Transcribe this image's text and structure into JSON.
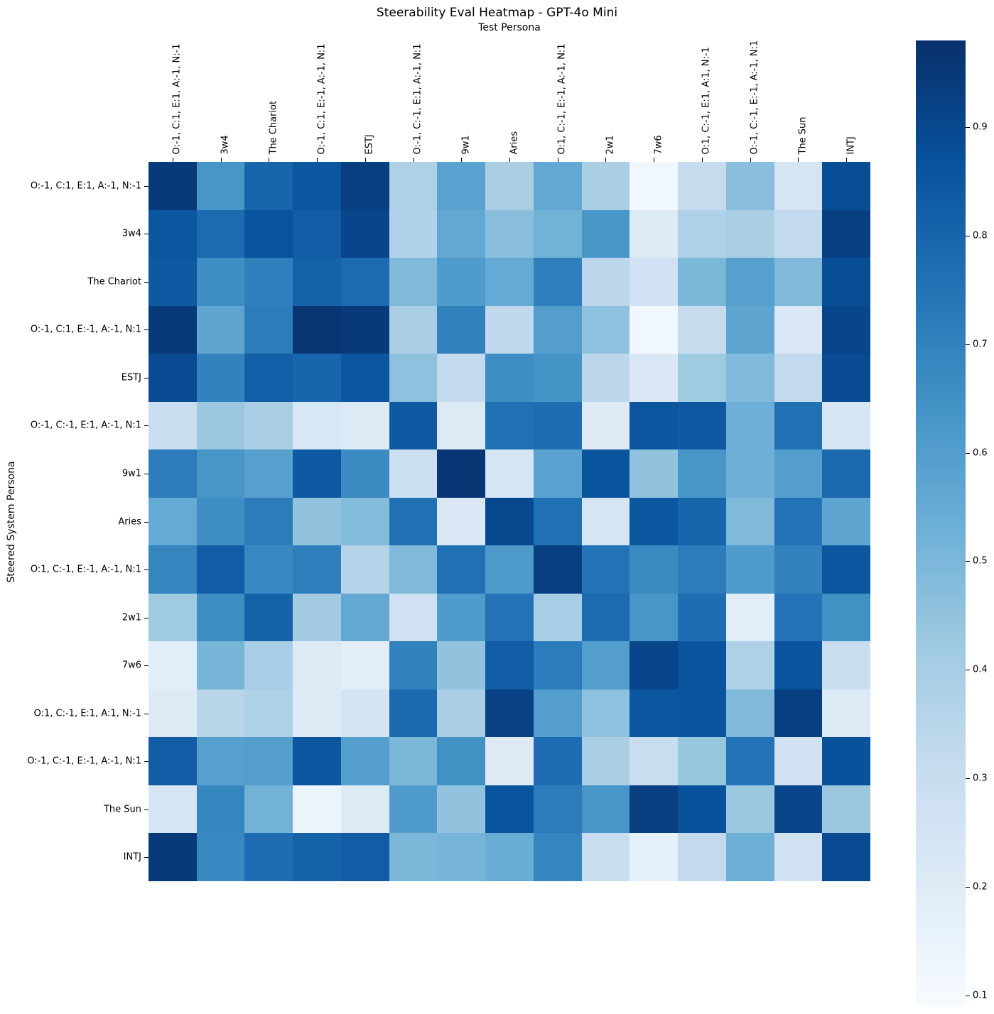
{
  "title": "Steerability Eval Heatmap - GPT-4o Mini",
  "x_axis_label": "Test Persona",
  "y_axis_label": "Steered System Persona",
  "chart_data": {
    "type": "heatmap",
    "title": "Steerability Eval Heatmap - GPT-4o Mini",
    "xlabel": "Test Persona",
    "ylabel": "Steered System Persona",
    "colormap": "Blues",
    "colormap_anchors": [
      {
        "pos": 0.0,
        "color": "#f7fbff"
      },
      {
        "pos": 0.125,
        "color": "#deebf7"
      },
      {
        "pos": 0.25,
        "color": "#c6dbef"
      },
      {
        "pos": 0.375,
        "color": "#9ecae1"
      },
      {
        "pos": 0.5,
        "color": "#6baed6"
      },
      {
        "pos": 0.625,
        "color": "#4292c6"
      },
      {
        "pos": 0.75,
        "color": "#2171b5"
      },
      {
        "pos": 0.875,
        "color": "#08519c"
      },
      {
        "pos": 1.0,
        "color": "#08306b"
      }
    ],
    "vmin": 0.09,
    "vmax": 0.98,
    "colorbar_ticks": [
      0.1,
      0.2,
      0.3,
      0.4,
      0.5,
      0.6,
      0.7,
      0.8,
      0.9
    ],
    "x_categories": [
      "O:-1, C:1, E:1, A:-1, N:-1",
      "3w4",
      "The Chariot",
      "O:-1, C:1, E:-1, A:-1, N:1",
      "ESTJ",
      "O:-1, C:-1, E:1, A:-1, N:1",
      "9w1",
      "Aries",
      "O:1, C:-1, E:-1, A:-1, N:1",
      "2w1",
      "7w6",
      "O:1, C:-1, E:1, A:1, N:-1",
      "O:-1, C:-1, E:-1, A:-1, N:1",
      "The Sun",
      "INTJ"
    ],
    "y_categories": [
      "O:-1, C:1, E:1, A:-1, N:-1",
      "3w4",
      "The Chariot",
      "O:-1, C:1, E:-1, A:-1, N:1",
      "ESTJ",
      "O:-1, C:-1, E:1, A:-1, N:1",
      "9w1",
      "Aries",
      "O:1, C:-1, E:-1, A:-1, N:1",
      "2w1",
      "7w6",
      "O:1, C:-1, E:1, A:1, N:-1",
      "O:-1, C:-1, E:-1, A:-1, N:1",
      "The Sun",
      "INTJ"
    ],
    "matrix": [
      [
        0.95,
        0.63,
        0.8,
        0.85,
        0.93,
        0.38,
        0.58,
        0.39,
        0.56,
        0.39,
        0.12,
        0.31,
        0.47,
        0.24,
        0.88
      ],
      [
        0.85,
        0.78,
        0.86,
        0.83,
        0.91,
        0.37,
        0.56,
        0.47,
        0.52,
        0.63,
        0.21,
        0.38,
        0.39,
        0.32,
        0.93
      ],
      [
        0.84,
        0.66,
        0.71,
        0.81,
        0.78,
        0.49,
        0.61,
        0.55,
        0.71,
        0.34,
        0.27,
        0.5,
        0.59,
        0.49,
        0.88
      ],
      [
        0.95,
        0.57,
        0.72,
        0.96,
        0.95,
        0.39,
        0.7,
        0.33,
        0.6,
        0.46,
        0.12,
        0.31,
        0.57,
        0.22,
        0.91
      ],
      [
        0.89,
        0.7,
        0.82,
        0.8,
        0.85,
        0.46,
        0.32,
        0.66,
        0.64,
        0.34,
        0.22,
        0.42,
        0.49,
        0.32,
        0.89
      ],
      [
        0.3,
        0.43,
        0.39,
        0.23,
        0.21,
        0.84,
        0.21,
        0.76,
        0.77,
        0.2,
        0.85,
        0.84,
        0.53,
        0.76,
        0.24
      ],
      [
        0.72,
        0.63,
        0.59,
        0.84,
        0.67,
        0.28,
        0.96,
        0.24,
        0.58,
        0.86,
        0.45,
        0.63,
        0.53,
        0.6,
        0.79
      ],
      [
        0.55,
        0.66,
        0.72,
        0.45,
        0.48,
        0.76,
        0.22,
        0.9,
        0.76,
        0.24,
        0.85,
        0.8,
        0.49,
        0.75,
        0.57
      ],
      [
        0.69,
        0.83,
        0.68,
        0.71,
        0.36,
        0.49,
        0.76,
        0.62,
        0.93,
        0.75,
        0.67,
        0.72,
        0.61,
        0.7,
        0.85
      ],
      [
        0.42,
        0.66,
        0.81,
        0.41,
        0.56,
        0.27,
        0.61,
        0.75,
        0.4,
        0.78,
        0.63,
        0.77,
        0.19,
        0.75,
        0.65
      ],
      [
        0.19,
        0.51,
        0.4,
        0.21,
        0.18,
        0.7,
        0.45,
        0.83,
        0.72,
        0.6,
        0.91,
        0.86,
        0.38,
        0.86,
        0.3
      ],
      [
        0.21,
        0.35,
        0.38,
        0.2,
        0.25,
        0.79,
        0.39,
        0.92,
        0.6,
        0.46,
        0.85,
        0.86,
        0.49,
        0.93,
        0.21
      ],
      [
        0.83,
        0.59,
        0.6,
        0.85,
        0.6,
        0.5,
        0.65,
        0.2,
        0.77,
        0.39,
        0.3,
        0.44,
        0.75,
        0.26,
        0.87
      ],
      [
        0.24,
        0.69,
        0.52,
        0.14,
        0.21,
        0.61,
        0.45,
        0.86,
        0.72,
        0.63,
        0.93,
        0.87,
        0.43,
        0.91,
        0.43
      ],
      [
        0.95,
        0.68,
        0.77,
        0.81,
        0.83,
        0.5,
        0.51,
        0.54,
        0.69,
        0.3,
        0.16,
        0.32,
        0.53,
        0.26,
        0.89
      ]
    ]
  }
}
